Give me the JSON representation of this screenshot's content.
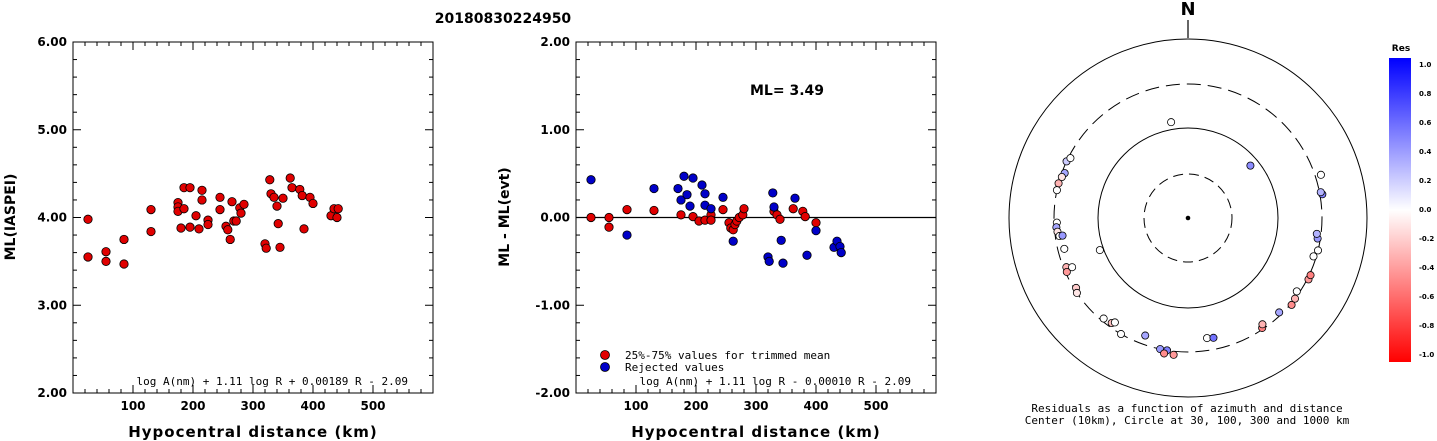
{
  "figure": {
    "title": "20180830224950"
  },
  "chart_data": [
    {
      "type": "scatter",
      "title": "",
      "xlabel": "Hypocentral distance (km)",
      "ylabel": "ML(IASPEI)",
      "xlim": [
        0,
        600
      ],
      "ylim": [
        2.0,
        6.0
      ],
      "xticks": [
        "100",
        "200",
        "300",
        "400",
        "500"
      ],
      "yticks": [
        "2.00",
        "3.00",
        "4.00",
        "5.00",
        "6.00"
      ],
      "formula": "log A(nm) + 1.11 log R + 0.00189 R - 2.09",
      "grid": false,
      "series": [
        {
          "color": "#e00000",
          "points": [
            [
              25,
              3.98
            ],
            [
              25,
              3.55
            ],
            [
              55,
              3.61
            ],
            [
              55,
              3.5
            ],
            [
              85,
              3.75
            ],
            [
              85,
              3.47
            ],
            [
              130,
              4.09
            ],
            [
              130,
              3.84
            ],
            [
              175,
              4.17
            ],
            [
              175,
              4.12
            ],
            [
              175,
              4.07
            ],
            [
              180,
              3.88
            ],
            [
              185,
              4.34
            ],
            [
              185,
              4.1
            ],
            [
              195,
              4.34
            ],
            [
              195,
              3.89
            ],
            [
              205,
              4.02
            ],
            [
              210,
              3.87
            ],
            [
              215,
              4.31
            ],
            [
              215,
              4.2
            ],
            [
              225,
              3.97
            ],
            [
              225,
              3.92
            ],
            [
              245,
              4.23
            ],
            [
              245,
              4.09
            ],
            [
              255,
              3.9
            ],
            [
              258,
              3.86
            ],
            [
              262,
              3.75
            ],
            [
              265,
              4.18
            ],
            [
              268,
              3.96
            ],
            [
              272,
              3.96
            ],
            [
              278,
              4.11
            ],
            [
              280,
              4.05
            ],
            [
              285,
              4.15
            ],
            [
              320,
              3.7
            ],
            [
              322,
              3.65
            ],
            [
              328,
              4.43
            ],
            [
              330,
              4.27
            ],
            [
              335,
              4.23
            ],
            [
              340,
              4.13
            ],
            [
              342,
              3.93
            ],
            [
              345,
              3.66
            ],
            [
              350,
              4.22
            ],
            [
              362,
              4.45
            ],
            [
              365,
              4.34
            ],
            [
              378,
              4.32
            ],
            [
              382,
              4.25
            ],
            [
              385,
              3.87
            ],
            [
              395,
              4.23
            ],
            [
              400,
              4.16
            ],
            [
              430,
              4.02
            ],
            [
              435,
              4.1
            ],
            [
              440,
              4.0
            ],
            [
              442,
              4.1
            ]
          ]
        }
      ]
    },
    {
      "type": "scatter",
      "title": "",
      "xlabel": "Hypocentral distance (km)",
      "ylabel": "ML - ML(evt)",
      "xlim": [
        0,
        600
      ],
      "ylim": [
        -2.0,
        2.0
      ],
      "xticks": [
        "100",
        "200",
        "300",
        "400",
        "500"
      ],
      "yticks": [
        "-2.00",
        "-1.00",
        "0.00",
        "1.00",
        "2.00"
      ],
      "annotation": "ML= 3.49",
      "reference_line": 0.0,
      "formula": "log A(nm) + 1.11 log R - 0.00010 R - 2.09",
      "legend_position": "bottom-left",
      "grid": false,
      "series": [
        {
          "name": "25%-75% values for trimmed mean",
          "color": "#e00000",
          "points": [
            [
              25,
              0.0
            ],
            [
              55,
              0.0
            ],
            [
              55,
              -0.11
            ],
            [
              85,
              0.09
            ],
            [
              130,
              0.08
            ],
            [
              175,
              0.03
            ],
            [
              195,
              0.01
            ],
            [
              205,
              -0.04
            ],
            [
              215,
              -0.03
            ],
            [
              225,
              0.03
            ],
            [
              225,
              -0.03
            ],
            [
              245,
              0.09
            ],
            [
              255,
              -0.06
            ],
            [
              258,
              -0.12
            ],
            [
              262,
              -0.14
            ],
            [
              265,
              -0.08
            ],
            [
              268,
              -0.04
            ],
            [
              272,
              0.0
            ],
            [
              278,
              0.03
            ],
            [
              280,
              0.1
            ],
            [
              330,
              0.07
            ],
            [
              335,
              0.03
            ],
            [
              340,
              -0.02
            ],
            [
              362,
              0.1
            ],
            [
              378,
              0.07
            ],
            [
              382,
              0.01
            ],
            [
              400,
              -0.06
            ]
          ]
        },
        {
          "name": "Rejected values",
          "color": "#0000c8",
          "points": [
            [
              25,
              0.43
            ],
            [
              85,
              -0.2
            ],
            [
              130,
              0.33
            ],
            [
              170,
              0.33
            ],
            [
              175,
              0.2
            ],
            [
              180,
              0.47
            ],
            [
              185,
              0.26
            ],
            [
              190,
              0.13
            ],
            [
              195,
              0.45
            ],
            [
              210,
              0.37
            ],
            [
              215,
              0.27
            ],
            [
              215,
              0.14
            ],
            [
              225,
              0.1
            ],
            [
              245,
              0.23
            ],
            [
              262,
              -0.27
            ],
            [
              320,
              -0.45
            ],
            [
              322,
              -0.5
            ],
            [
              328,
              0.28
            ],
            [
              330,
              0.12
            ],
            [
              342,
              -0.26
            ],
            [
              345,
              -0.52
            ],
            [
              365,
              0.22
            ],
            [
              385,
              -0.43
            ],
            [
              400,
              -0.15
            ],
            [
              430,
              -0.34
            ],
            [
              435,
              -0.27
            ],
            [
              440,
              -0.33
            ],
            [
              442,
              -0.4
            ]
          ]
        }
      ]
    },
    {
      "type": "polar-scatter",
      "title": "",
      "north_label": "N",
      "caption_line1": "Residuals as a function of azimuth and distance",
      "caption_line2": "Center (10km), Circle at 30, 100, 300 and 1000 km",
      "rings_km": [
        30,
        100,
        300,
        1000
      ],
      "colorbar": {
        "title": "Res",
        "ticks": [
          "1.0",
          "0.8",
          "0.6",
          "0.4",
          "0.2",
          "0.0",
          "-0.2",
          "-0.4",
          "-0.6",
          "-0.8",
          "-1.0"
        ],
        "min": -1.0,
        "max": 1.0,
        "colors_positive": "#0000ff",
        "colors_negative": "#ff0000"
      },
      "points": [
        {
          "az": 350,
          "km": 120,
          "res": 0.0
        },
        {
          "az": 50,
          "km": 80,
          "res": 0.45
        },
        {
          "az": 250,
          "km": 110,
          "res": 0.0
        },
        {
          "az": 295,
          "km": 300,
          "res": 0.2
        },
        {
          "az": 297,
          "km": 285,
          "res": 0.0
        },
        {
          "az": 290,
          "km": 280,
          "res": 0.35
        },
        {
          "az": 288,
          "km": 290,
          "res": -0.1
        },
        {
          "az": 285,
          "km": 300,
          "res": -0.3
        },
        {
          "az": 282,
          "km": 300,
          "res": 0.0
        },
        {
          "az": 268,
          "km": 280,
          "res": 0.0
        },
        {
          "az": 266,
          "km": 285,
          "res": 0.35
        },
        {
          "az": 264,
          "km": 280,
          "res": -0.1
        },
        {
          "az": 262,
          "km": 270,
          "res": 0.0
        },
        {
          "az": 262,
          "km": 250,
          "res": 0.4
        },
        {
          "az": 256,
          "km": 255,
          "res": 0.0
        },
        {
          "az": 248,
          "km": 280,
          "res": -0.3
        },
        {
          "az": 246,
          "km": 290,
          "res": -0.4
        },
        {
          "az": 247,
          "km": 245,
          "res": 0.0
        },
        {
          "az": 238,
          "km": 285,
          "res": -0.2
        },
        {
          "az": 236,
          "km": 300,
          "res": -0.1
        },
        {
          "az": 220,
          "km": 280,
          "res": 0.0
        },
        {
          "az": 216,
          "km": 270,
          "res": -0.25
        },
        {
          "az": 215,
          "km": 255,
          "res": 0.0
        },
        {
          "az": 210,
          "km": 300,
          "res": 0.0
        },
        {
          "az": 200,
          "km": 240,
          "res": 0.35
        },
        {
          "az": 192,
          "km": 300,
          "res": 0.4
        },
        {
          "az": 189,
          "km": 300,
          "res": 0.5
        },
        {
          "az": 190,
          "km": 330,
          "res": -0.45
        },
        {
          "az": 186,
          "km": 330,
          "res": -0.4
        },
        {
          "az": 171,
          "km": 220,
          "res": 0.0
        },
        {
          "az": 168,
          "km": 225,
          "res": 0.55
        },
        {
          "az": 146,
          "km": 290,
          "res": -0.5
        },
        {
          "az": 145,
          "km": 270,
          "res": -0.3
        },
        {
          "az": 136,
          "km": 280,
          "res": 0.35
        },
        {
          "az": 130,
          "km": 310,
          "res": -0.45
        },
        {
          "az": 127,
          "km": 300,
          "res": -0.3
        },
        {
          "az": 124,
          "km": 280,
          "res": 0.0
        },
        {
          "az": 117,
          "km": 310,
          "res": -0.4
        },
        {
          "az": 115,
          "km": 310,
          "res": -0.5
        },
        {
          "az": 107,
          "km": 280,
          "res": 0.0
        },
        {
          "az": 104,
          "km": 300,
          "res": 0.0
        },
        {
          "az": 99,
          "km": 280,
          "res": 0.4
        },
        {
          "az": 97,
          "km": 270,
          "res": 0.3
        },
        {
          "az": 80,
          "km": 320,
          "res": 0.5
        },
        {
          "az": 79,
          "km": 310,
          "res": 0.3
        },
        {
          "az": 72,
          "km": 350,
          "res": 0.0
        }
      ]
    }
  ]
}
